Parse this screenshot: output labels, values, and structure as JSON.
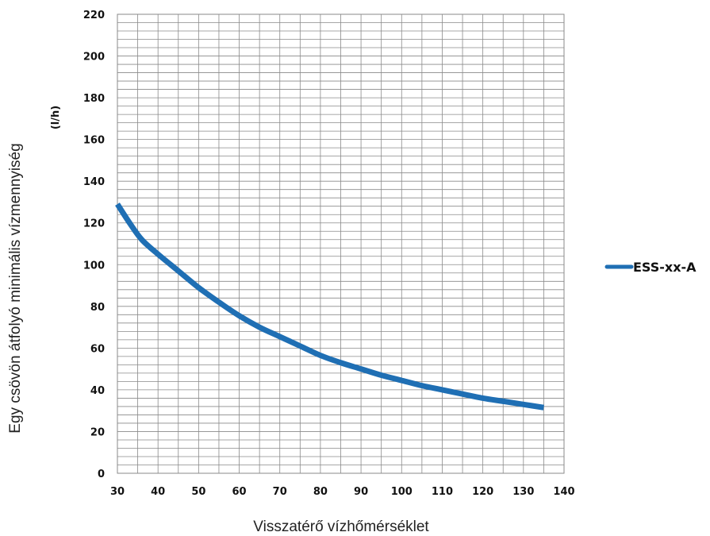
{
  "chart_data": {
    "type": "line",
    "xlabel": "Visszatérő vízhőmérséklet",
    "ylabel": "Egy csövön átfolyó minimális vízmennyiség",
    "yunit": "(l/h)",
    "xlim": [
      30,
      140
    ],
    "ylim": [
      0,
      220
    ],
    "xticks": [
      30,
      40,
      50,
      60,
      70,
      80,
      90,
      100,
      110,
      120,
      130,
      140
    ],
    "yticks": [
      0,
      20,
      40,
      60,
      80,
      100,
      120,
      140,
      160,
      180,
      200,
      220
    ],
    "grid": true,
    "legend_position": "right",
    "series": [
      {
        "name": "ESS-xx-A",
        "color": "#1f6fb4",
        "x": [
          30,
          33,
          36,
          40,
          45,
          50,
          55,
          60,
          65,
          70,
          75,
          80,
          85,
          90,
          95,
          100,
          105,
          110,
          115,
          120,
          125,
          130,
          135
        ],
        "y": [
          129,
          120,
          112,
          105,
          97,
          89,
          82,
          75.5,
          70,
          65.5,
          61,
          56.5,
          53,
          50,
          47,
          44.5,
          42,
          40,
          38,
          36,
          34.5,
          33,
          31.5
        ]
      }
    ]
  }
}
